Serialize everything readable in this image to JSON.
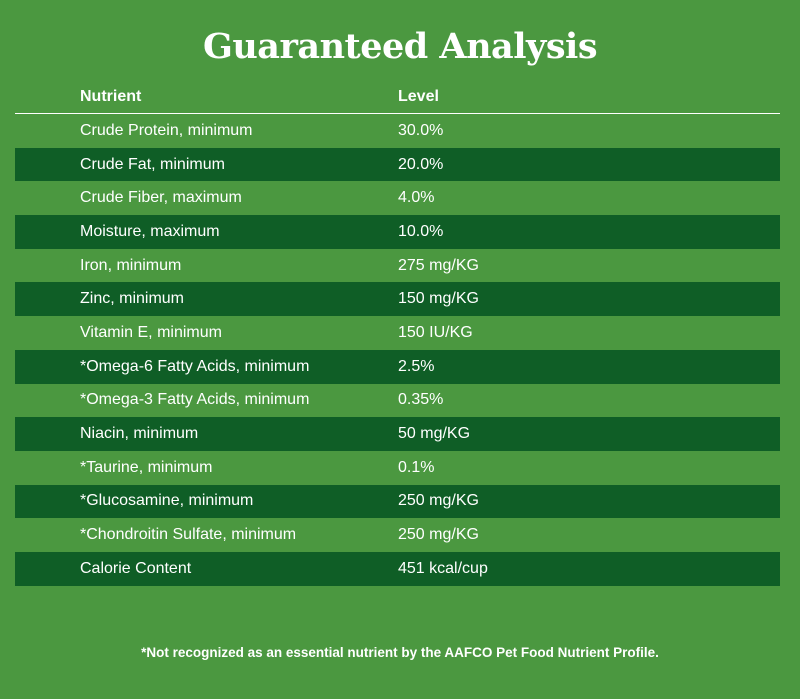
{
  "title": "Guaranteed Analysis",
  "table": {
    "headers": {
      "nutrient": "Nutrient",
      "level": "Level"
    },
    "rows": [
      {
        "nutrient": "Crude Protein, minimum",
        "level": "30.0%"
      },
      {
        "nutrient": "Crude Fat, minimum",
        "level": "20.0%"
      },
      {
        "nutrient": "Crude Fiber, maximum",
        "level": "4.0%"
      },
      {
        "nutrient": "Moisture, maximum",
        "level": "10.0%"
      },
      {
        "nutrient": "Iron, minimum",
        "level": "275 mg/KG"
      },
      {
        "nutrient": "Zinc, minimum",
        "level": "150 mg/KG"
      },
      {
        "nutrient": "Vitamin E, minimum",
        "level": "150 IU/KG"
      },
      {
        "nutrient": "*Omega-6 Fatty Acids, minimum",
        "level": "2.5%"
      },
      {
        "nutrient": "*Omega-3 Fatty Acids, minimum",
        "level": "0.35%"
      },
      {
        "nutrient": "Niacin, minimum",
        "level": "50 mg/KG"
      },
      {
        "nutrient": "*Taurine, minimum",
        "level": "0.1%"
      },
      {
        "nutrient": "*Glucosamine, minimum",
        "level": "250 mg/KG"
      },
      {
        "nutrient": "*Chondroitin Sulfate, minimum",
        "level": "250 mg/KG"
      },
      {
        "nutrient": "Calorie Content",
        "level": "451 kcal/cup"
      }
    ]
  },
  "footnote": "*Not recognized as an essential nutrient by the AAFCO Pet Food Nutrient Profile.",
  "colors": {
    "background": "#4b9840",
    "alt_row": "#0f5e26",
    "text": "#ffffff"
  }
}
